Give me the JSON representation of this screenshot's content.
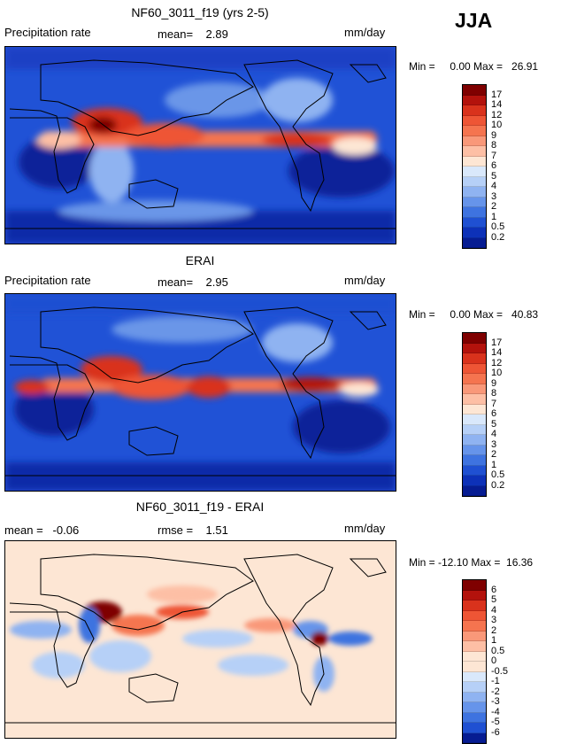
{
  "season": "JJA",
  "panels": [
    {
      "title": "NF60_3011_f19 (yrs 2-5)",
      "left_label": "Precipitation rate",
      "center_label": "mean=    2.89",
      "units": "mm/day",
      "minmax": "Min =     0.00 Max =   26.91",
      "colorbar_ticks": [
        "17",
        "14",
        "12",
        "10",
        "9",
        "8",
        "7",
        "6",
        "5",
        "4",
        "3",
        "2",
        "1",
        "0.5",
        "0.2"
      ]
    },
    {
      "title": "ERAI",
      "left_label": "Precipitation rate",
      "center_label": "mean=    2.95",
      "units": "mm/day",
      "minmax": "Min =     0.00 Max =   40.83",
      "colorbar_ticks": [
        "17",
        "14",
        "12",
        "10",
        "9",
        "8",
        "7",
        "6",
        "5",
        "4",
        "3",
        "2",
        "1",
        "0.5",
        "0.2"
      ]
    },
    {
      "title": "NF60_3011_f19 - ERAI",
      "left_label": "mean =   -0.06",
      "center_label": "rmse =    1.51",
      "units": "mm/day",
      "minmax": "Min = -12.10 Max =  16.36",
      "colorbar_ticks": [
        "6",
        "5",
        "4",
        "3",
        "2",
        "1",
        "0.5",
        "0",
        "-0.5",
        "-1",
        "-2",
        "-3",
        "-4",
        "-5",
        "-6"
      ]
    }
  ],
  "colors": {
    "abs_scale": [
      "#7f0000",
      "#b3120c",
      "#d9321c",
      "#ee5535",
      "#f5744f",
      "#f99879",
      "#fdbfa5",
      "#fde6d4",
      "#d9e8fb",
      "#b6d0f7",
      "#8fb3f1",
      "#6694ea",
      "#3e73e0",
      "#1f50d2",
      "#0d31b8",
      "#061c92"
    ],
    "diff_scale": [
      "#7f0000",
      "#b3120c",
      "#d9321c",
      "#ee5535",
      "#f5744f",
      "#f99879",
      "#fdbfa5",
      "#fde6d4",
      "#fde6d4",
      "#d9e8fb",
      "#b6d0f7",
      "#8fb3f1",
      "#6694ea",
      "#3e73e0",
      "#1f50d2",
      "#061c92"
    ]
  }
}
